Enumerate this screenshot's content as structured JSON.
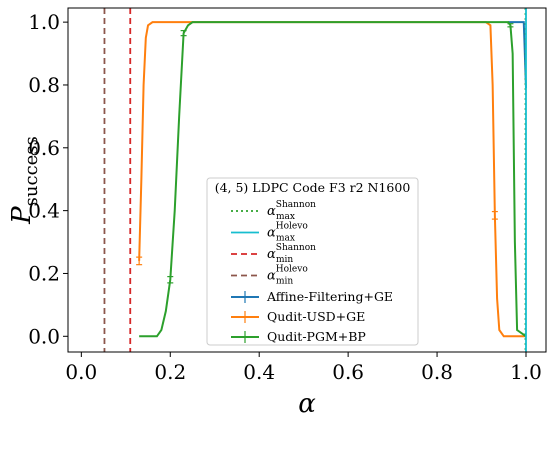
{
  "chart_data": {
    "type": "line",
    "xlabel": "α",
    "ylabel": {
      "symbol": "P",
      "sub": "success"
    },
    "xlim": [
      -0.03,
      1.045
    ],
    "ylim": [
      -0.05,
      1.045
    ],
    "xticks": [
      {
        "value": 0,
        "label": "0.0"
      },
      {
        "value": 0.2,
        "label": "0.2"
      },
      {
        "value": 0.4,
        "label": "0.4"
      },
      {
        "value": 0.6,
        "label": "0.6"
      },
      {
        "value": 0.8,
        "label": "0.8"
      },
      {
        "value": 1,
        "label": "1.0"
      }
    ],
    "yticks": [
      {
        "value": 0,
        "label": "0.0"
      },
      {
        "value": 0.2,
        "label": "0.2"
      },
      {
        "value": 0.4,
        "label": "0.4"
      },
      {
        "value": 0.6,
        "label": "0.6"
      },
      {
        "value": 0.8,
        "label": "0.8"
      },
      {
        "value": 1,
        "label": "1.0"
      }
    ],
    "legend_title": "(4, 5) LDPC Code F3 r2 N1600",
    "legend_loc": "lower center",
    "vlines": [
      {
        "symbol": "α",
        "sup": "Shannon",
        "sub": "max",
        "x": 0.999,
        "color": "#2ca02c",
        "style": "dotted"
      },
      {
        "symbol": "α",
        "sup": "Holevo",
        "sub": "max",
        "x": 1.0,
        "color": "#17becf",
        "style": "solid"
      },
      {
        "symbol": "α",
        "sup": "Shannon",
        "sub": "min",
        "x": 0.11,
        "color": "#d62728",
        "style": "dashed"
      },
      {
        "symbol": "α",
        "sup": "Holevo",
        "sub": "min",
        "x": 0.052,
        "color": "#8c564b",
        "style": "dashed"
      }
    ],
    "series": [
      {
        "name": "Affine-Filtering+GE",
        "color": "#1f77b4",
        "x": [
          0.96,
          0.98,
          0.995,
          1.0
        ],
        "values": [
          1,
          1,
          1,
          0.79
        ],
        "errors": [
          null,
          null,
          null,
          null
        ]
      },
      {
        "name": "Qudit-USD+GE",
        "color": "#ff7f0e",
        "x": [
          0.13,
          0.135,
          0.14,
          0.145,
          0.15,
          0.16,
          0.5,
          0.91,
          0.92,
          0.925,
          0.93,
          0.935,
          0.94,
          0.95,
          1.0
        ],
        "values": [
          0.24,
          0.5,
          0.8,
          0.95,
          0.99,
          1,
          1,
          1,
          0.99,
          0.8,
          0.385,
          0.12,
          0.02,
          0,
          0
        ],
        "errors": [
          0.012,
          null,
          null,
          null,
          null,
          null,
          null,
          null,
          null,
          null,
          0.012,
          null,
          null,
          null,
          null
        ]
      },
      {
        "name": "Qudit-PGM+BP",
        "color": "#2ca02c",
        "x": [
          0.13,
          0.17,
          0.18,
          0.19,
          0.2,
          0.21,
          0.22,
          0.23,
          0.24,
          0.25,
          0.26,
          0.5,
          0.96,
          0.965,
          0.97,
          0.975,
          0.98,
          1.0
        ],
        "values": [
          0,
          0,
          0.02,
          0.08,
          0.18,
          0.4,
          0.7,
          0.965,
          0.99,
          1,
          1,
          1,
          1,
          0.99,
          0.9,
          0.3,
          0.02,
          0
        ],
        "errors": [
          null,
          null,
          null,
          null,
          0.01,
          null,
          null,
          0.008,
          null,
          null,
          null,
          null,
          null,
          0.005,
          null,
          null,
          null,
          null
        ]
      }
    ]
  }
}
